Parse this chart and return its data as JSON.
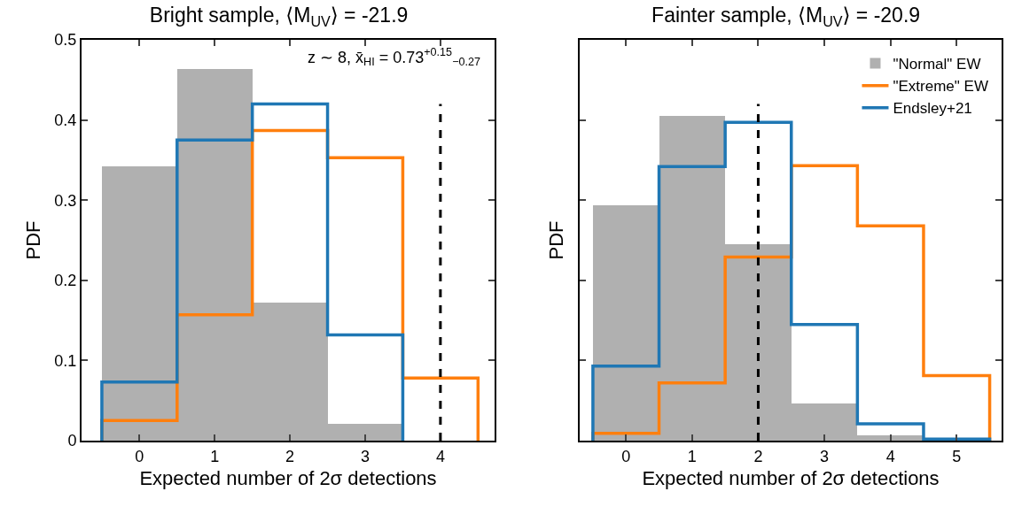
{
  "chart_data": [
    {
      "type": "bar",
      "title": "Bright sample, ⟨M$_{UV}$⟩ = -21.9",
      "xlabel": "Expected number of 2σ detections",
      "ylabel": "PDF",
      "annotations": [
        "z ∼ 8, x̄$_{HI}$ = 0.73$^{+0.15}$$_{−0.27}$"
      ],
      "x": [
        0,
        1,
        2,
        3
      ],
      "series": [
        {
          "type": "bar",
          "color": "#b0b0b0",
          "values": [
            0.342,
            0.464,
            0.172,
            0.021
          ]
        },
        {
          "type": "step",
          "color": "#ff7f0e",
          "x": [
            -0.5,
            -0.5,
            0.5,
            1.5,
            2.5,
            3.5,
            4.5,
            4.5
          ],
          "values": [
            0,
            0.025,
            0.157,
            0.387,
            0.353,
            0.078,
            0.078,
            0
          ]
        },
        {
          "type": "step",
          "color": "#1f77b4",
          "x": [
            -0.5,
            -0.5,
            0.5,
            1.5,
            2.5,
            3.5,
            3.5
          ],
          "values": [
            0,
            0.073,
            0.375,
            0.42,
            0.132,
            0.132,
            0
          ]
        }
      ],
      "xlim": [
        -0.77,
        4.72
      ],
      "xticks": [
        0,
        1,
        2,
        3,
        4
      ],
      "ylim": [
        0,
        0.5
      ],
      "yticks": [
        0.0,
        0.1,
        0.2,
        0.3,
        0.4,
        0.5
      ],
      "ref_lines": [
        {
          "axis": "x",
          "value": 4,
          "color": "#000000",
          "line_style": "dashed"
        }
      ],
      "grid": false,
      "legend": false
    },
    {
      "type": "bar",
      "title": "Fainter sample, ⟨M$_{UV}$⟩ = -20.9",
      "xlabel": "Expected number of 2σ detections",
      "ylabel": "PDF",
      "x": [
        0,
        1,
        2,
        3,
        4
      ],
      "series": [
        {
          "type": "bar",
          "name": "\"Normal\" EW",
          "color": "#b0b0b0",
          "values": [
            0.294,
            0.405,
            0.245,
            0.046,
            0.007
          ]
        },
        {
          "type": "step",
          "name": "\"Extreme\" EW",
          "color": "#ff7f0e",
          "x": [
            -0.5,
            -0.5,
            0.5,
            1.5,
            2.5,
            3.5,
            4.5,
            5.5,
            5.5
          ],
          "values": [
            0,
            0.009,
            0.072,
            0.229,
            0.343,
            0.268,
            0.081,
            0.081,
            0
          ]
        },
        {
          "type": "step",
          "name": "Endsley+21",
          "color": "#1f77b4",
          "x": [
            -0.5,
            -0.5,
            0.5,
            1.5,
            2.5,
            3.5,
            4.5,
            5.5,
            5.5
          ],
          "values": [
            0,
            0.093,
            0.342,
            0.397,
            0.145,
            0.021,
            0.002,
            0.002,
            0
          ]
        }
      ],
      "xlim": [
        -0.7,
        5.68
      ],
      "xticks": [
        0,
        1,
        2,
        3,
        4,
        5
      ],
      "ylim": [
        0,
        0.5
      ],
      "yticks": [
        0.0,
        0.1,
        0.2,
        0.3,
        0.4,
        0.5
      ],
      "tick_labels": "x",
      "ref_lines": [
        {
          "axis": "x",
          "value": 2,
          "color": "#000000",
          "line_style": "dashed"
        }
      ],
      "grid": false,
      "legend": "top right"
    }
  ]
}
